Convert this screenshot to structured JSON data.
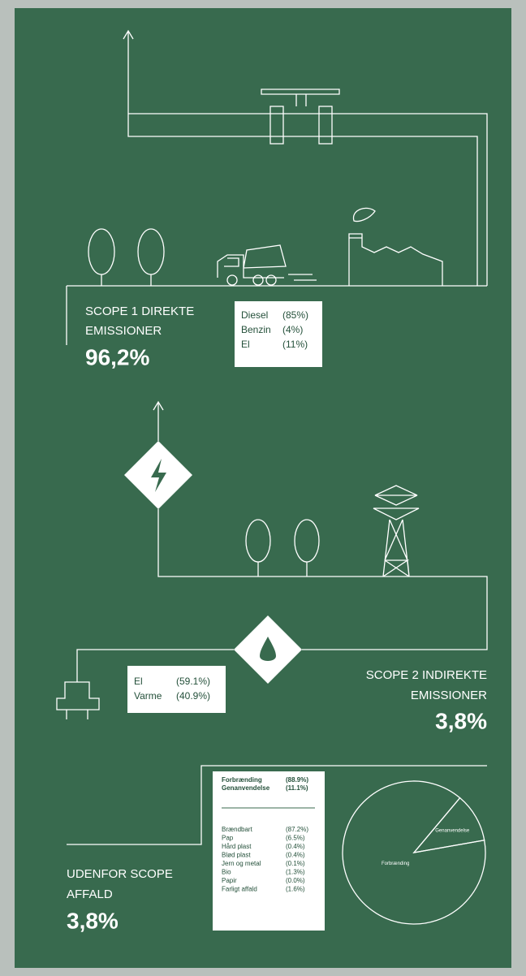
{
  "scope1": {
    "title_line1": "SCOPE 1 DIREKTE",
    "title_line2": "EMISSIONER",
    "share": "96,2%",
    "table": {
      "rows": [
        [
          "Diesel",
          "(85%)"
        ],
        [
          "Benzin",
          "(4%)"
        ],
        [
          "El",
          "(11%)"
        ]
      ]
    }
  },
  "scope2": {
    "title_line1": "SCOPE 2 INDIREKTE",
    "title_line2": "EMISSIONER",
    "share": "3,8%",
    "table": {
      "rows": [
        [
          "El",
          "(59.1%)"
        ],
        [
          "Varme",
          "(40.9%)"
        ]
      ]
    }
  },
  "outside": {
    "title_line1": "UDENFOR SCOPE",
    "title_line2": "AFFALD",
    "share": "3,8%",
    "summary": {
      "rows": [
        [
          "Forbrænding",
          "(88.9%)"
        ],
        [
          "Genanvendelse",
          "(11.1%)"
        ]
      ]
    },
    "breakdown": {
      "rows": [
        [
          "Brændbart",
          "(87.2%)"
        ],
        [
          "Pap",
          "(6.5%)"
        ],
        [
          "Hård plast",
          "(0.4%)"
        ],
        [
          "Blød plast",
          "(0.4%)"
        ],
        [
          "Jern og metal",
          "(0.1%)"
        ],
        [
          "Bio",
          "(1.3%)"
        ],
        [
          "Papir",
          "(0.0%)"
        ],
        [
          "Farligt affald",
          "(1.6%)"
        ]
      ]
    }
  },
  "pie": {
    "type": "pie",
    "labels": [
      "Forbrænding",
      "Genanvendelse"
    ],
    "values": [
      88.9,
      11.1
    ]
  }
}
